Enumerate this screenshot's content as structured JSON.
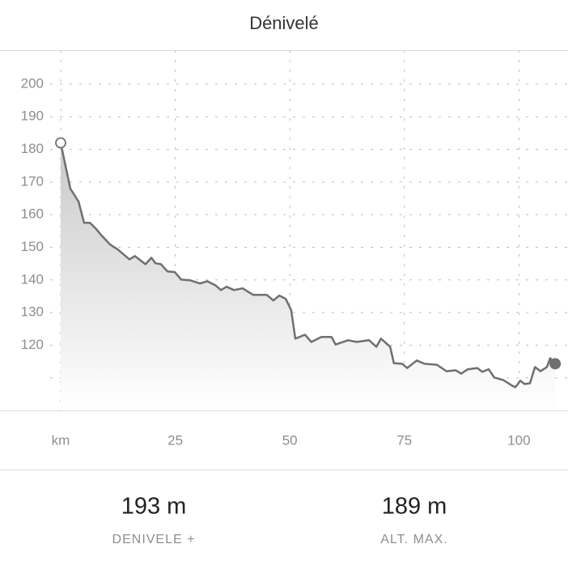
{
  "chart_data": {
    "type": "area-line",
    "title": "Dénivelé",
    "x": [
      0,
      2.1,
      3.9,
      5.1,
      6.4,
      7.8,
      8.8,
      10.8,
      12.5,
      15.0,
      16.2,
      18.5,
      19.8,
      20.7,
      21.9,
      23.3,
      24.9,
      26.3,
      28.2,
      30.4,
      32.0,
      33.7,
      35.0,
      36.2,
      37.8,
      39.7,
      42.0,
      45.0,
      46.4,
      47.7,
      49.1,
      50.3,
      51.2,
      53.3,
      54.7,
      56.9,
      59.1,
      60.0,
      62.7,
      64.6,
      67.3,
      68.9,
      69.9,
      71.9,
      72.7,
      74.5,
      75.6,
      77.7,
      79.4,
      82.1,
      84.2,
      86.2,
      87.4,
      88.8,
      90.9,
      92.0,
      93.4,
      94.6,
      96.6,
      98.5,
      99.2,
      100.3,
      101.2,
      102.4,
      103.5,
      104.7,
      106.1,
      106.8,
      107.9
    ],
    "values": [
      182,
      168.0,
      164,
      157.5,
      157.5,
      155.5,
      153.8,
      150.8,
      149.3,
      146.3,
      147.3,
      144.8,
      146.8,
      145.1,
      144.8,
      142.6,
      142.4,
      140.1,
      139.9,
      138.9,
      139.6,
      138.4,
      136.9,
      137.9,
      136.9,
      137.4,
      135.4,
      135.4,
      133.7,
      135.2,
      134.2,
      130.7,
      122.0,
      123.2,
      121.0,
      122.5,
      122.5,
      120.2,
      121.5,
      121.0,
      121.5,
      119.5,
      122.0,
      119.5,
      114.5,
      114.3,
      113.0,
      115.3,
      114.3,
      114.0,
      112.0,
      112.3,
      111.3,
      112.6,
      113.0,
      111.8,
      112.6,
      110.1,
      109.3,
      107.6,
      107.1,
      109.1,
      108.1,
      108.3,
      113.3,
      112.0,
      113.3,
      116.0,
      114.3
    ],
    "color": "#6f6f6f",
    "xlim": [
      -13.24,
      110.7
    ],
    "xticks": [
      {
        "value": 0,
        "label": "km"
      },
      25,
      50,
      75,
      100
    ],
    "ylim": [
      100,
      210.4
    ],
    "yticks": [
      200,
      190,
      180,
      170,
      160,
      150,
      140,
      130,
      120
    ],
    "unlabeled_gridlines": [
      110
    ],
    "grid": true
  },
  "stats": [
    {
      "value": "193 m",
      "label": "DENIVELE +"
    },
    {
      "value": "189 m",
      "label": "ALT. MAX."
    }
  ]
}
